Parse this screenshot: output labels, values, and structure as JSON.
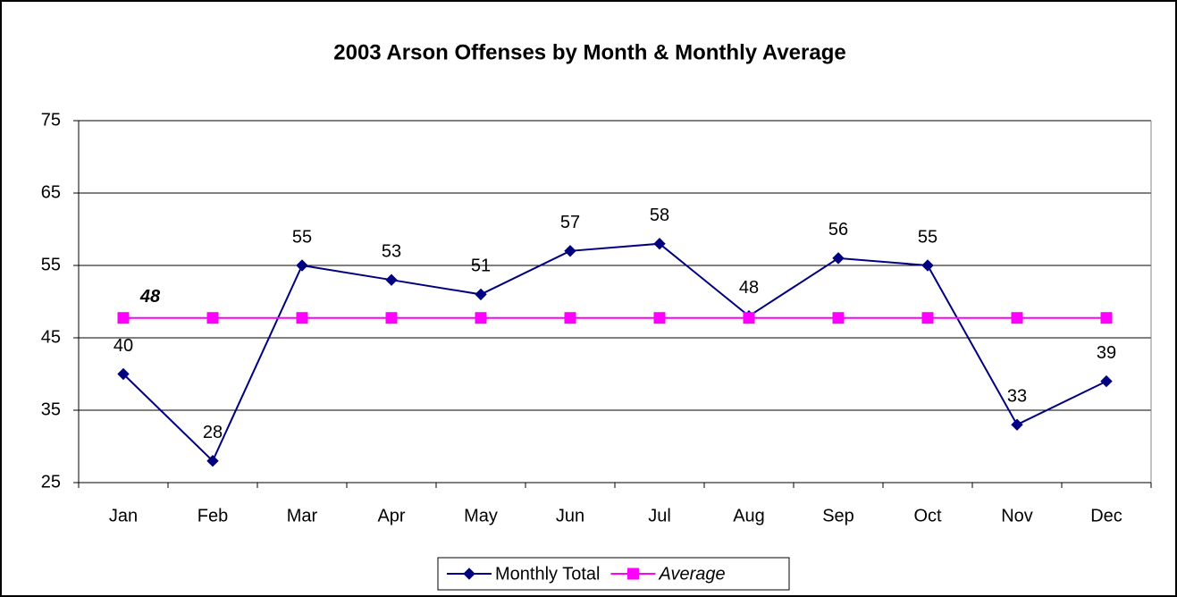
{
  "chart_data": {
    "type": "line",
    "title": "2003 Arson Offenses by Month & Monthly Average",
    "categories": [
      "Jan",
      "Feb",
      "Mar",
      "Apr",
      "May",
      "Jun",
      "Jul",
      "Aug",
      "Sep",
      "Oct",
      "Nov",
      "Dec"
    ],
    "series": [
      {
        "name": "Monthly Total",
        "color": "#000080",
        "marker": "diamond",
        "values": [
          40,
          28,
          55,
          53,
          51,
          57,
          58,
          48,
          56,
          55,
          33,
          39
        ]
      },
      {
        "name": "Average",
        "color": "#ff00ff",
        "marker": "square",
        "values": [
          47.75,
          47.75,
          47.75,
          47.75,
          47.75,
          47.75,
          47.75,
          47.75,
          47.75,
          47.75,
          47.75,
          47.75
        ],
        "value_labels": [
          "48",
          null,
          null,
          null,
          null,
          null,
          null,
          null,
          null,
          null,
          null,
          null
        ]
      }
    ],
    "ylim": [
      25,
      75
    ],
    "yticks": [
      25,
      35,
      45,
      55,
      65,
      75
    ],
    "grid": true,
    "legend": "bottom"
  }
}
